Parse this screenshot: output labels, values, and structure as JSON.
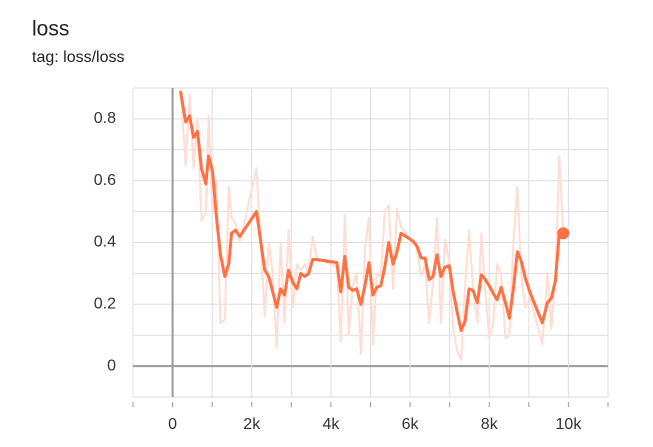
{
  "chart_data": {
    "type": "line",
    "title": "loss",
    "subtitle": "tag: loss/loss",
    "x": [
      200,
      330,
      430,
      530,
      630,
      730,
      840,
      910,
      1010,
      1110,
      1210,
      1320,
      1420,
      1490,
      1590,
      1700,
      2120,
      2330,
      2430,
      2530,
      2630,
      2730,
      2830,
      2930,
      3040,
      3140,
      3240,
      3340,
      3440,
      3540,
      3640,
      4150,
      4250,
      4350,
      4450,
      4550,
      4650,
      4760,
      4860,
      4960,
      5060,
      5160,
      5260,
      5360,
      5460,
      5570,
      5670,
      5770,
      6070,
      6170,
      6280,
      6380,
      6480,
      6580,
      6680,
      6780,
      6880,
      6990,
      7090,
      7190,
      7290,
      7390,
      7490,
      7590,
      7700,
      7800,
      7900,
      8000,
      8100,
      8200,
      8300,
      8410,
      8510,
      8610,
      8710,
      8810,
      8910,
      9040,
      9340,
      9470,
      9570,
      9670,
      9770,
      9870
    ],
    "series": [
      {
        "color": "#ffddd3",
        "values": [
          0.9,
          0.65,
          0.88,
          0.64,
          0.8,
          0.47,
          0.5,
          0.81,
          0.49,
          0.6,
          0.14,
          0.15,
          0.58,
          0.48,
          0.46,
          0.4,
          0.64,
          0.16,
          0.4,
          0.3,
          0.06,
          0.4,
          0.14,
          0.44,
          0.19,
          0.33,
          0.31,
          0.33,
          0.3,
          0.42,
          0.35,
          0.32,
          0.08,
          0.49,
          0.1,
          0.26,
          0.3,
          0.04,
          0.38,
          0.48,
          0.07,
          0.3,
          0.29,
          0.5,
          0.52,
          0.25,
          0.51,
          0.45,
          0.4,
          0.38,
          0.29,
          0.33,
          0.14,
          0.27,
          0.48,
          0.14,
          0.41,
          0.34,
          0.12,
          0.05,
          0.02,
          0.26,
          0.44,
          0.25,
          0.14,
          0.43,
          0.24,
          0.09,
          0.14,
          0.33,
          0.3,
          0.09,
          0.1,
          0.4,
          0.58,
          0.29,
          0.19,
          0.22,
          0.07,
          0.3,
          0.12,
          0.29,
          0.68,
          0.43
        ]
      },
      {
        "color": "#ff7043",
        "values": [
          0.89,
          0.79,
          0.81,
          0.74,
          0.76,
          0.64,
          0.59,
          0.68,
          0.63,
          0.48,
          0.36,
          0.29,
          0.33,
          0.43,
          0.44,
          0.42,
          0.5,
          0.31,
          0.29,
          0.24,
          0.19,
          0.25,
          0.23,
          0.31,
          0.27,
          0.25,
          0.3,
          0.29,
          0.3,
          0.345,
          0.345,
          0.335,
          0.24,
          0.355,
          0.255,
          0.245,
          0.25,
          0.2,
          0.26,
          0.335,
          0.23,
          0.255,
          0.26,
          0.32,
          0.4,
          0.33,
          0.37,
          0.43,
          0.405,
          0.39,
          0.35,
          0.35,
          0.28,
          0.29,
          0.36,
          0.29,
          0.32,
          0.325,
          0.24,
          0.175,
          0.115,
          0.145,
          0.25,
          0.245,
          0.205,
          0.295,
          0.28,
          0.26,
          0.235,
          0.215,
          0.255,
          0.205,
          0.155,
          0.25,
          0.37,
          0.34,
          0.285,
          0.235,
          0.14,
          0.205,
          0.22,
          0.275,
          0.43,
          0.43
        ]
      }
    ],
    "xlim": [
      -1000,
      11000
    ],
    "xticks": [
      0,
      {
        "value": 2000,
        "label": "2k"
      },
      {
        "value": 4000,
        "label": "4k"
      },
      {
        "value": 6000,
        "label": "6k"
      },
      {
        "value": 8000,
        "label": "8k"
      },
      {
        "value": 10000,
        "label": "10k"
      }
    ],
    "x_minor_ticks": [
      -1000,
      1000,
      3000,
      5000,
      7000,
      9000,
      11000
    ],
    "ylim": [
      -0.1,
      0.9
    ],
    "yticks": [
      0,
      0.2,
      0.4,
      0.6,
      0.8
    ],
    "y_minor_ticks": [
      -0.1,
      0.1,
      0.3,
      0.5,
      0.7,
      0.9
    ],
    "grid": true
  }
}
